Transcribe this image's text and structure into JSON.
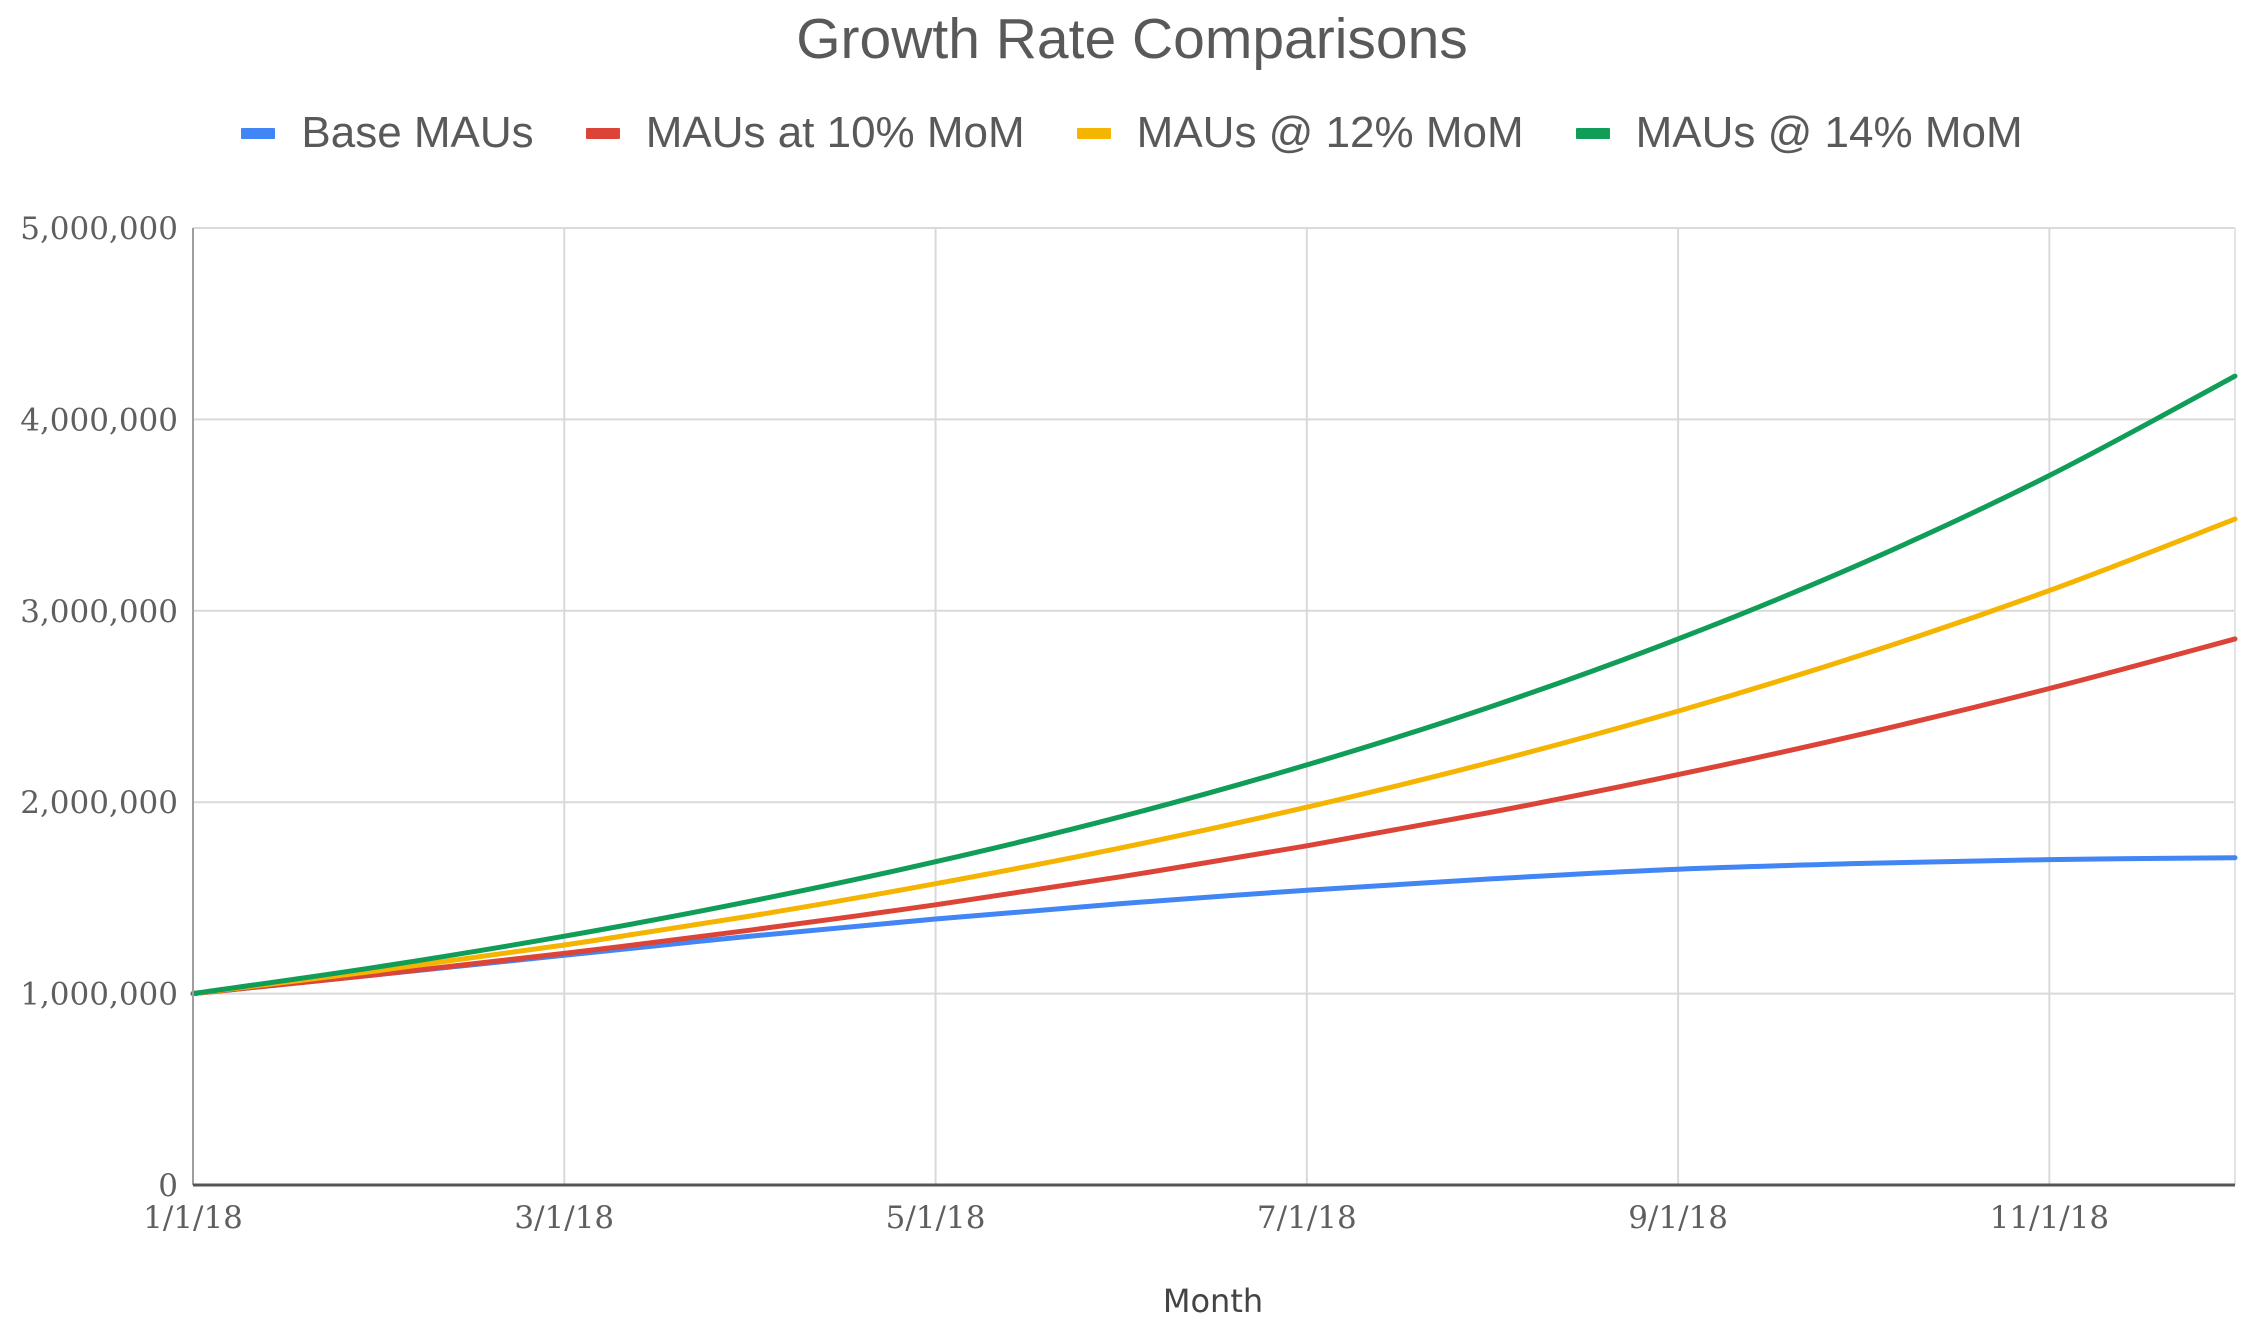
{
  "chart_data": {
    "type": "line",
    "title": "Growth Rate Comparisons",
    "xlabel": "Month",
    "ylabel": "",
    "x": [
      "1/1/18",
      "2/1/18",
      "3/1/18",
      "4/1/18",
      "5/1/18",
      "6/1/18",
      "7/1/18",
      "8/1/18",
      "9/1/18",
      "10/1/18",
      "11/1/18",
      "12/1/18"
    ],
    "x_tick_labels": [
      "1/1/18",
      "3/1/18",
      "5/1/18",
      "7/1/18",
      "9/1/18",
      "11/1/18"
    ],
    "ylim": [
      0,
      5000000
    ],
    "y_tick_labels": [
      "0",
      "1,000,000",
      "2,000,000",
      "3,000,000",
      "4,000,000",
      "5,000,000"
    ],
    "grid": true,
    "legend_position": "top",
    "series": [
      {
        "name": "Base MAUs",
        "color": "#4285f4",
        "values": [
          1000000,
          1100000,
          1200000,
          1300000,
          1390000,
          1470000,
          1540000,
          1600000,
          1650000,
          1680000,
          1700000,
          1710000
        ]
      },
      {
        "name": "MAUs at 10% MoM",
        "color": "#db4437",
        "values": [
          1000000,
          1100000,
          1210000,
          1331000,
          1464000,
          1611000,
          1772000,
          1949000,
          2144000,
          2358000,
          2594000,
          2853000
        ]
      },
      {
        "name": "MAUs @ 12% MoM",
        "color": "#f4b400",
        "values": [
          1000000,
          1120000,
          1254000,
          1405000,
          1574000,
          1762000,
          1974000,
          2211000,
          2476000,
          2773000,
          3106000,
          3479000
        ]
      },
      {
        "name": "MAUs @ 14% MoM",
        "color": "#0f9d58",
        "values": [
          1000000,
          1140000,
          1300000,
          1482000,
          1689000,
          1925000,
          2195000,
          2502000,
          2853000,
          3252000,
          3707000,
          4226000
        ]
      }
    ]
  }
}
